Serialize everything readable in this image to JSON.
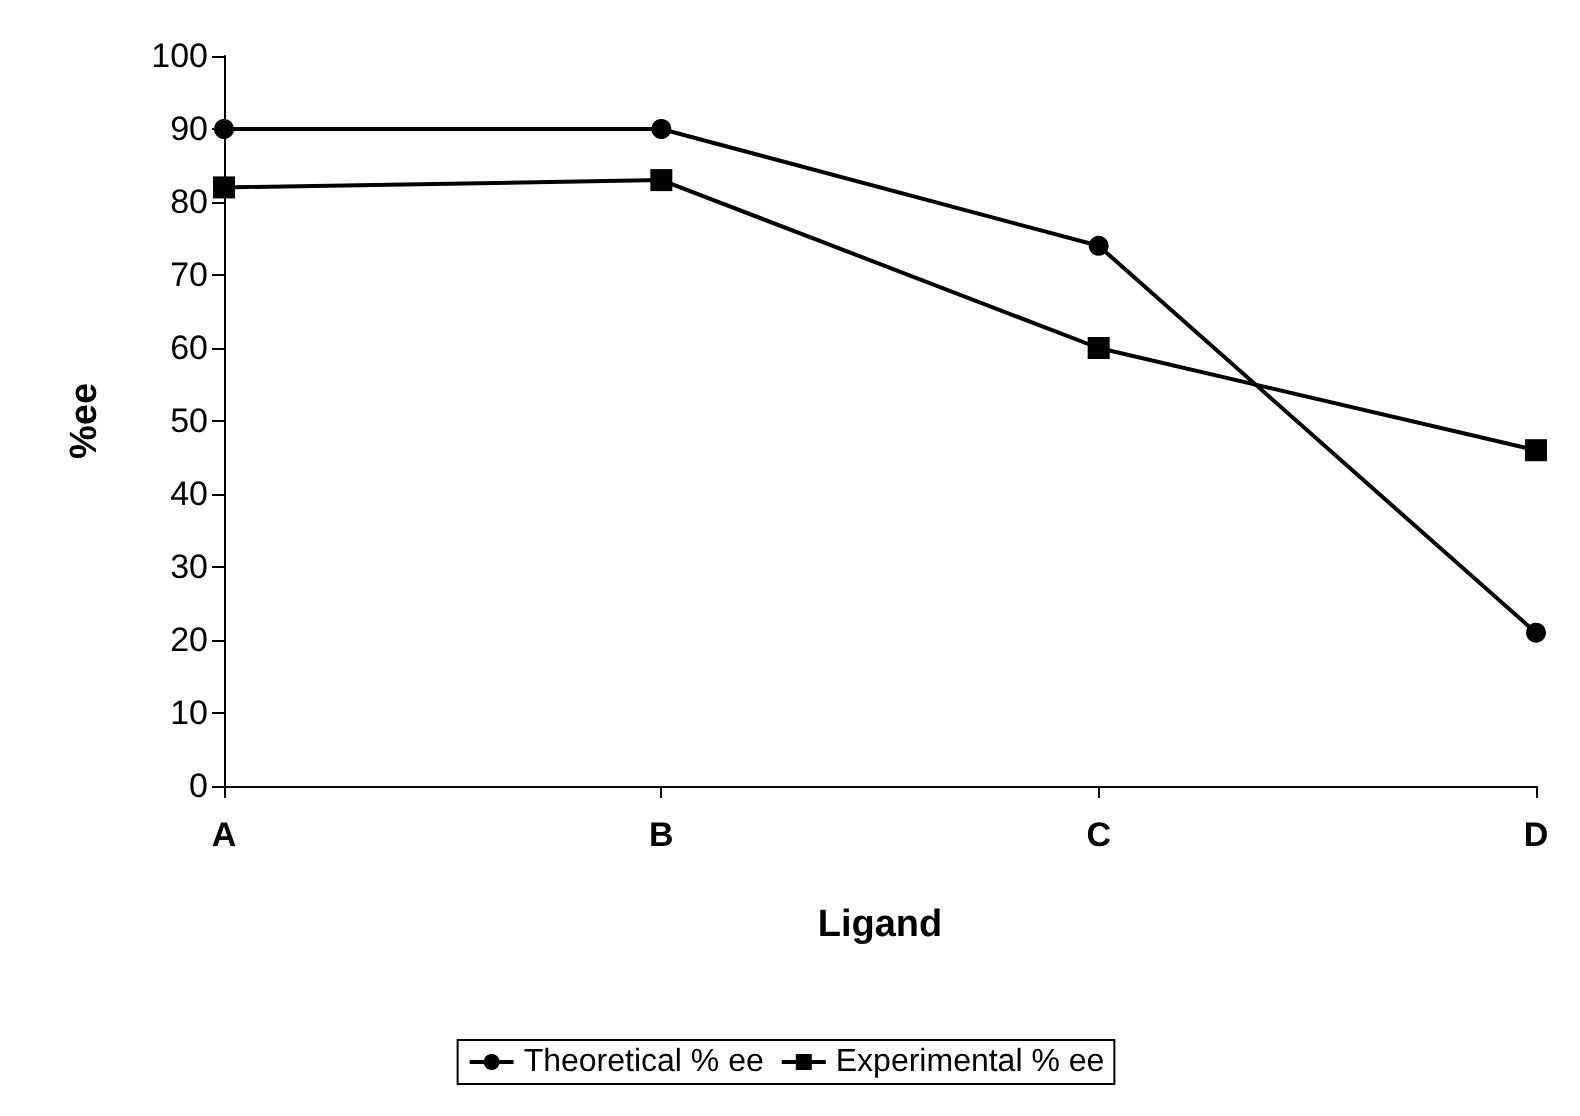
{
  "chart_data": {
    "type": "line",
    "xlabel": "Ligand",
    "ylabel": "%ee",
    "categories": [
      "A",
      "B",
      "C",
      "D"
    ],
    "series": [
      {
        "name": "Theoretical % ee",
        "color": "#000000",
        "marker": "circle",
        "values": [
          90,
          90,
          74,
          21
        ]
      },
      {
        "name": "Experimental % ee",
        "color": "#000000",
        "marker": "square",
        "values": [
          82,
          83,
          60,
          46
        ]
      }
    ],
    "ylim": [
      0,
      100
    ],
    "yticks": [
      0,
      10,
      20,
      30,
      40,
      50,
      60,
      70,
      80,
      90,
      100
    ],
    "grid": false,
    "legend": "bottom",
    "line_style": "solid"
  }
}
